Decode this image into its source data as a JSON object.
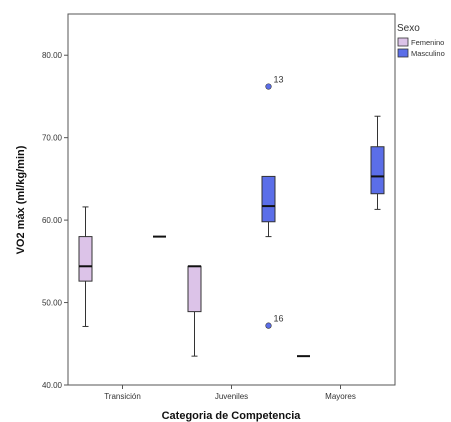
{
  "chart_data": {
    "type": "boxplot",
    "xlabel": "Categoria de Competencia",
    "ylabel": "VO2 máx (ml/kg/min)",
    "ylim": [
      40,
      85
    ],
    "yticks": [
      40,
      50,
      60,
      70,
      80
    ],
    "ytick_labels": [
      "40.00",
      "50.00",
      "60.00",
      "70.00",
      "80.00"
    ],
    "categories": [
      "Transición",
      "Juveniles",
      "Mayores"
    ],
    "legend": {
      "title": "Sexo",
      "position": "top-right outside",
      "entries": [
        {
          "name": "Femenino",
          "color": "#dcc3e8"
        },
        {
          "name": "Masculino",
          "color": "#5b6ee8"
        }
      ]
    },
    "boxes": [
      {
        "category": "Transición",
        "series": "Femenino",
        "whisker_low": 47.1,
        "q1": 52.6,
        "median": 54.4,
        "q3": 58.0,
        "whisker_high": 61.6,
        "outliers": []
      },
      {
        "category": "Transición",
        "series": "Masculino",
        "whisker_low": 58.0,
        "q1": 58.0,
        "median": 58.0,
        "q3": 58.0,
        "whisker_high": 58.0,
        "outliers": []
      },
      {
        "category": "Juveniles",
        "series": "Femenino",
        "whisker_low": 43.5,
        "q1": 48.9,
        "median": 54.4,
        "q3": 54.4,
        "whisker_high": 54.4,
        "outliers": []
      },
      {
        "category": "Juveniles",
        "series": "Masculino",
        "whisker_low": 58.0,
        "q1": 59.8,
        "median": 61.7,
        "q3": 65.3,
        "whisker_high": 65.3,
        "outliers": [
          {
            "value": 76.2,
            "label": "13"
          },
          {
            "value": 47.2,
            "label": "16"
          }
        ]
      },
      {
        "category": "Mayores",
        "series": "Femenino",
        "whisker_low": 43.5,
        "q1": 43.5,
        "median": 43.5,
        "q3": 43.5,
        "whisker_high": 43.5,
        "outliers": []
      },
      {
        "category": "Mayores",
        "series": "Masculino",
        "whisker_low": 61.3,
        "q1": 63.2,
        "median": 65.3,
        "q3": 68.9,
        "whisker_high": 72.6,
        "outliers": []
      }
    ]
  }
}
